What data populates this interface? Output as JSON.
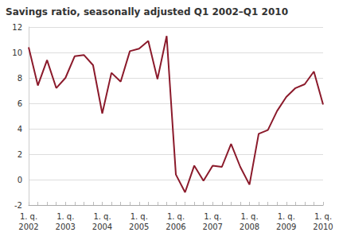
{
  "chart_data": {
    "type": "line",
    "title": "Savings ratio, seasonally adjusted Q1 2002–Q1 2010",
    "categories": [
      "1. q.\n2002",
      null,
      null,
      null,
      "1. q.\n2003",
      null,
      null,
      null,
      "1. q.\n2004",
      null,
      null,
      null,
      "1. q.\n2005",
      null,
      null,
      null,
      "1. q.\n2006",
      null,
      null,
      null,
      "1. q.\n2007",
      null,
      null,
      null,
      "1. q.\n2008",
      null,
      null,
      null,
      "1. q.\n2009",
      null,
      null,
      null,
      "1. q.\n2010"
    ],
    "values": [
      10.4,
      7.4,
      9.4,
      7.2,
      8.0,
      9.7,
      9.8,
      9.0,
      5.2,
      8.4,
      7.7,
      10.1,
      10.3,
      10.9,
      7.9,
      11.3,
      0.4,
      -1.0,
      1.1,
      -0.1,
      1.1,
      1.0,
      2.8,
      1.0,
      -0.4,
      3.6,
      3.9,
      5.4,
      6.5,
      7.2,
      7.5,
      8.5,
      5.9
    ],
    "color": "#8b1a2b",
    "ylim": [
      -2,
      12
    ],
    "yticks": [
      -2,
      0,
      2,
      4,
      6,
      8,
      10,
      12
    ],
    "grid": true
  }
}
